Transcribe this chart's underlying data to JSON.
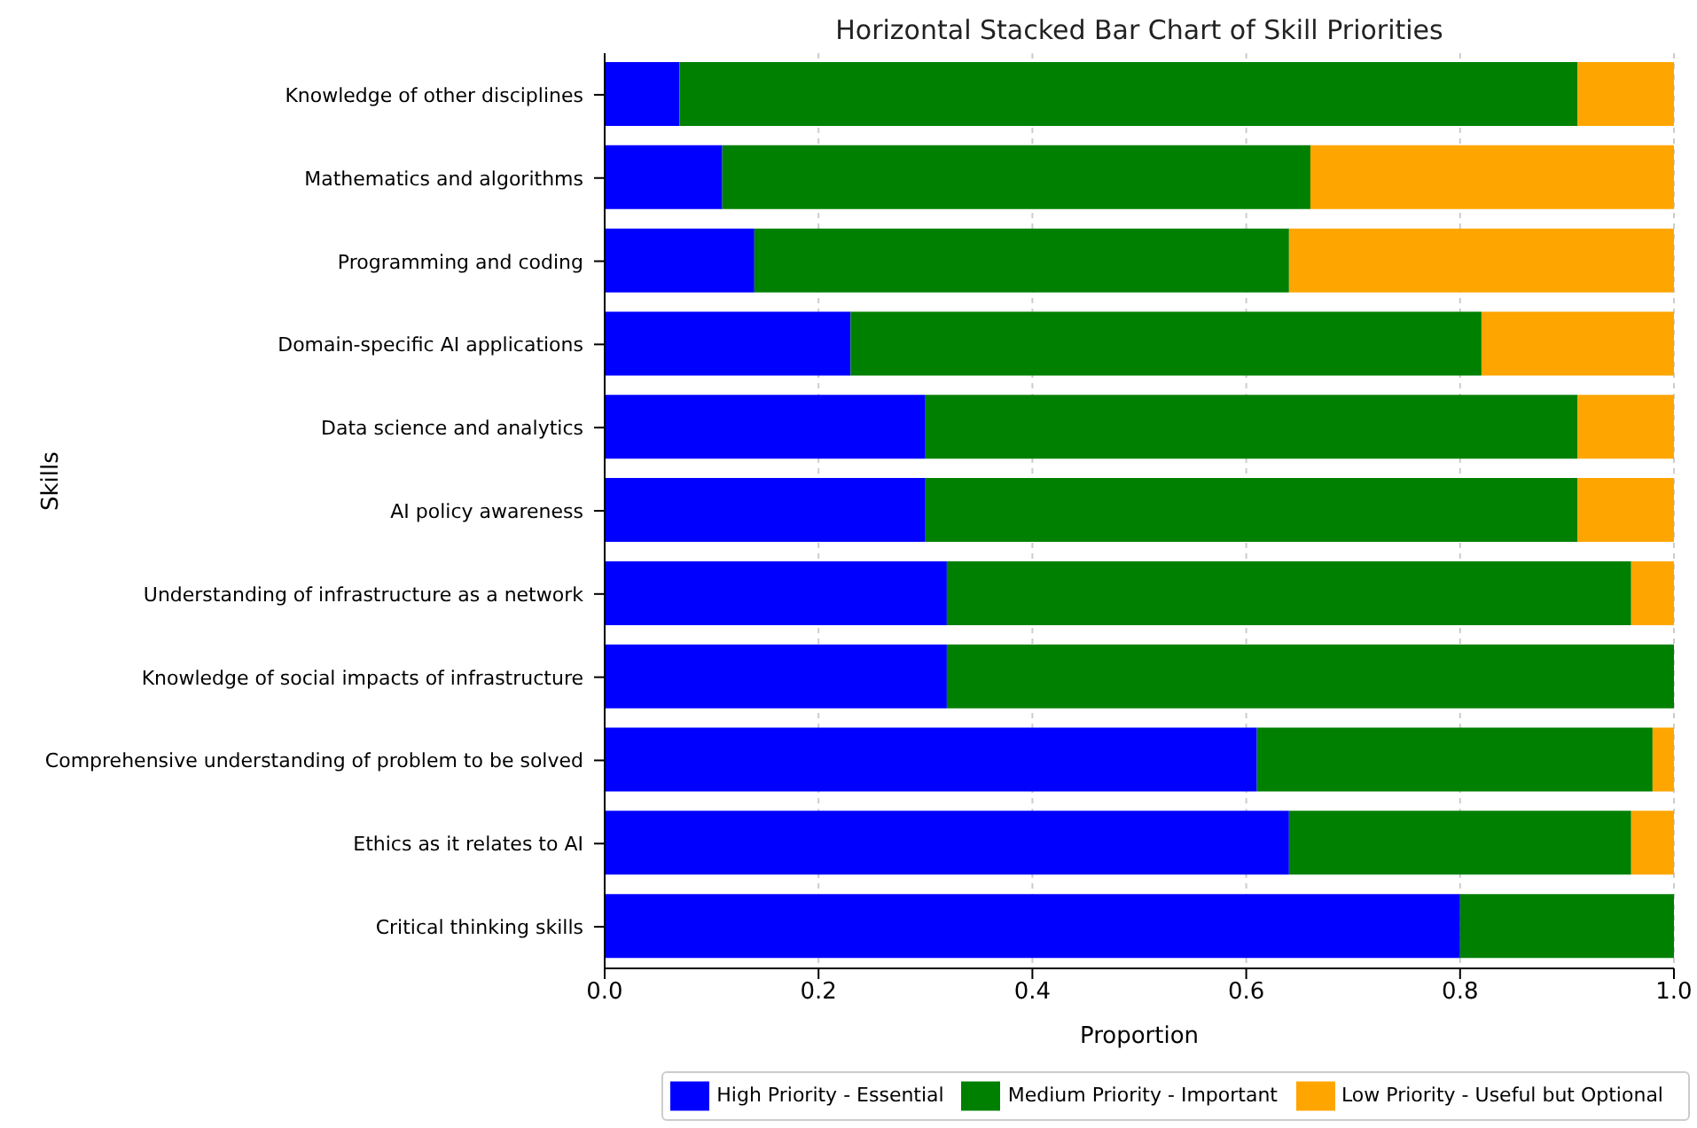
{
  "chart_data": {
    "type": "bar",
    "orientation": "horizontal",
    "stacked": true,
    "title": "Horizontal Stacked Bar Chart of Skill Priorities",
    "xlabel": "Proportion",
    "ylabel": "Skills",
    "categories": [
      "Knowledge of other disciplines",
      "Mathematics and algorithms",
      "Programming and coding",
      "Domain-specific AI applications",
      "Data science and analytics",
      "AI policy awareness",
      "Understanding of infrastructure as a network",
      "Knowledge of social impacts of infrastructure",
      "Comprehensive understanding of problem to be solved",
      "Ethics as it relates to AI",
      "Critical thinking skills"
    ],
    "series": [
      {
        "name": "High Priority - Essential",
        "color": "#0000ff",
        "values": [
          0.07,
          0.11,
          0.14,
          0.23,
          0.3,
          0.3,
          0.32,
          0.32,
          0.61,
          0.64,
          0.8
        ]
      },
      {
        "name": "Medium Priority - Important",
        "color": "#008000",
        "values": [
          0.84,
          0.55,
          0.5,
          0.59,
          0.61,
          0.61,
          0.64,
          0.68,
          0.37,
          0.32,
          0.2
        ]
      },
      {
        "name": "Low Priority - Useful but Optional",
        "color": "#ffa500",
        "values": [
          0.09,
          0.34,
          0.36,
          0.18,
          0.09,
          0.09,
          0.04,
          0,
          0.02,
          0.04,
          0
        ]
      }
    ],
    "xlim": [
      0,
      1
    ],
    "xticks": [
      {
        "value": 0,
        "label": "0.0"
      },
      {
        "value": 0.2,
        "label": "0.2"
      },
      {
        "value": 0.4,
        "label": "0.4"
      },
      {
        "value": 0.6,
        "label": "0.6"
      },
      {
        "value": 0.8,
        "label": "0.8"
      },
      {
        "value": 1,
        "label": "1.0"
      }
    ],
    "grid": true,
    "legend": "bottom"
  }
}
